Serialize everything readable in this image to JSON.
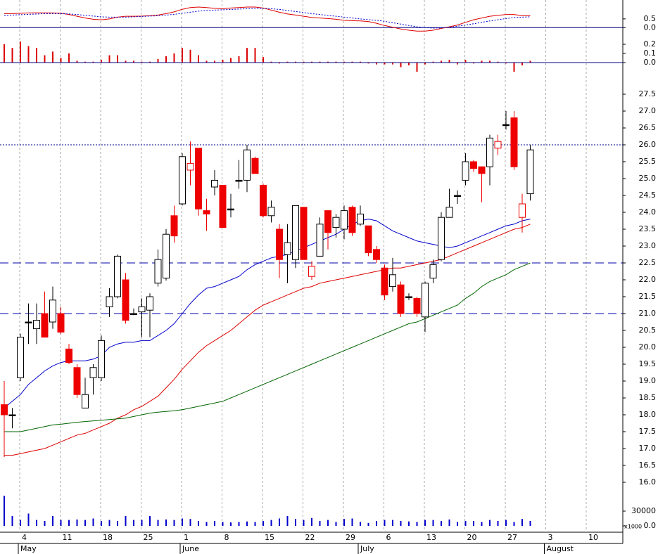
{
  "chart_data": [
    {
      "type": "line",
      "ylim": [
        -0.35,
        1.5
      ],
      "yticks": [
        {
          "value": 0,
          "label": "0.0"
        },
        0.5
      ],
      "zero_line": true,
      "series": [
        {
          "color": "#dd0000",
          "style": "solid",
          "values": [
            0.8,
            0.8,
            0.82,
            0.84,
            0.85,
            0.85,
            0.84,
            0.82,
            0.75,
            0.65,
            0.55,
            0.48,
            0.45,
            0.5,
            0.6,
            0.65,
            0.65,
            0.66,
            0.68,
            0.72,
            0.8,
            0.9,
            1.05,
            1.15,
            1.18,
            1.15,
            1.1,
            1.08,
            1.12,
            1.15,
            1.18,
            1.18,
            1.12,
            1.0,
            0.88,
            0.78,
            0.72,
            0.65,
            0.58,
            0.55,
            0.52,
            0.48,
            0.42,
            0.4,
            0.38,
            0.35,
            0.25,
            0.12,
            0.02,
            -0.08,
            -0.15,
            -0.2,
            -0.2,
            -0.15,
            -0.05,
            0.05,
            0.15,
            0.3,
            0.45,
            0.55,
            0.65,
            0.7,
            0.75,
            0.75,
            0.68,
            0.68,
            null,
            null,
            null,
            null,
            null,
            null,
            null,
            null,
            null,
            null,
            null
          ]
        },
        {
          "color": "#0000cc",
          "style": "dotted",
          "values": [
            0.7,
            0.72,
            0.74,
            0.76,
            0.78,
            0.8,
            0.8,
            0.8,
            0.78,
            0.75,
            0.7,
            0.66,
            0.62,
            0.6,
            0.6,
            0.6,
            0.62,
            0.64,
            0.66,
            0.68,
            0.72,
            0.76,
            0.82,
            0.88,
            0.94,
            0.98,
            1.0,
            1.02,
            1.04,
            1.06,
            1.08,
            1.1,
            1.1,
            1.08,
            1.04,
            0.98,
            0.92,
            0.86,
            0.8,
            0.75,
            0.7,
            0.65,
            0.6,
            0.55,
            0.5,
            0.46,
            0.42,
            0.36,
            0.28,
            0.2,
            0.12,
            0.05,
            0,
            -0.03,
            -0.02,
            0.02,
            0.08,
            0.15,
            0.22,
            0.3,
            0.38,
            0.45,
            0.52,
            0.58,
            0.6,
            0.62,
            null,
            null,
            null,
            null,
            null,
            null,
            null,
            null,
            null,
            null,
            null
          ]
        }
      ]
    },
    {
      "type": "bar",
      "color": "#dd0000",
      "ylim": [
        -0.1,
        0.3
      ],
      "yticks": [
        {
          "value": 0,
          "label": "0.0"
        },
        0.1,
        0.2
      ],
      "zero_line": true,
      "values": [
        0.2,
        0.16,
        0.23,
        0.18,
        0.16,
        0.08,
        0.12,
        0.05,
        0.1,
        0.02,
        0.01,
        0.01,
        0.03,
        0.08,
        0.08,
        0.02,
        0.02,
        0.01,
        0.01,
        0.04,
        0.07,
        0.1,
        0.16,
        0.14,
        0.08,
        0.02,
        0.02,
        0.03,
        0.05,
        0.07,
        0.16,
        0.16,
        0.06,
        0.01,
        -0.01,
        0.01,
        0.01,
        0.01,
        0.01,
        0.01,
        0.01,
        0.01,
        0.01,
        0.01,
        0.01,
        -0.01,
        -0.02,
        -0.02,
        -0.02,
        -0.05,
        -0.03,
        -0.1,
        -0.02,
        0.01,
        0.02,
        0.03,
        -0.02,
        0.03,
        -0.01,
        0.02,
        0.02,
        0.01,
        -0.01,
        -0.1,
        -0.03,
        0.02,
        null,
        null,
        null,
        null,
        null,
        null,
        null,
        null,
        null,
        null,
        null
      ]
    },
    {
      "type": "candlestick",
      "categories": [
        null,
        null,
        "4",
        null,
        null,
        null,
        null,
        "11",
        null,
        null,
        null,
        null,
        "18",
        null,
        null,
        null,
        null,
        "25",
        null,
        null,
        null,
        null,
        "1",
        null,
        null,
        null,
        null,
        "8",
        null,
        null,
        null,
        null,
        "15",
        null,
        null,
        null,
        null,
        "22",
        null,
        null,
        null,
        null,
        "29",
        null,
        null,
        null,
        null,
        "6",
        null,
        null,
        null,
        null,
        "13",
        null,
        null,
        null,
        null,
        "20",
        null,
        null,
        null,
        null,
        "27",
        null,
        null,
        null,
        null,
        "3",
        null,
        null,
        null,
        null,
        "10",
        null,
        null,
        null,
        null
      ],
      "months": [
        null,
        null,
        "May",
        null,
        null,
        null,
        null,
        null,
        null,
        null,
        null,
        null,
        null,
        null,
        null,
        null,
        null,
        null,
        null,
        null,
        null,
        null,
        "June",
        null,
        null,
        null,
        null,
        null,
        null,
        null,
        null,
        null,
        null,
        null,
        null,
        null,
        null,
        null,
        null,
        null,
        null,
        null,
        null,
        null,
        "July",
        null,
        null,
        null,
        null,
        null,
        null,
        null,
        null,
        null,
        null,
        null,
        null,
        null,
        null,
        null,
        null,
        null,
        null,
        null,
        null,
        null,
        null,
        "August",
        null,
        null,
        null,
        null,
        null,
        null,
        null,
        null,
        null
      ],
      "open": [
        18.3,
        18.0,
        19.1,
        20.75,
        20.55,
        21.0,
        20.75,
        21.0,
        19.95,
        19.4,
        18.2,
        19.1,
        19.1,
        21.2,
        21.5,
        22.0,
        21.0,
        21.05,
        21.1,
        21.9,
        22.05,
        23.9,
        24.25,
        25.25,
        25.9,
        24.05,
        24.75,
        24.8,
        24.1,
        24.95,
        24.95,
        25.6,
        24.8,
        23.9,
        23.5,
        22.75,
        22.6,
        24.15,
        22.1,
        22.7,
        24.05,
        23.55,
        23.5,
        24.15,
        23.65,
        23.6,
        22.9,
        22.35,
        21.8,
        21.85,
        21.5,
        21.45,
        20.9,
        22.05,
        22.6,
        23.85,
        24.5,
        24.95,
        25.5,
        25.35,
        25.35,
        25.9,
        26.6,
        26.8,
        23.85,
        24.55,
        null,
        null,
        null,
        null,
        null,
        null,
        null,
        null,
        null,
        null,
        null
      ],
      "high": [
        19.0,
        18.2,
        20.4,
        21.3,
        21.3,
        21.65,
        21.8,
        21.2,
        20.1,
        19.5,
        19.1,
        19.5,
        20.35,
        21.75,
        22.75,
        22.2,
        21.15,
        21.45,
        21.6,
        22.9,
        23.5,
        24.2,
        25.75,
        26.1,
        25.9,
        24.4,
        25.25,
        24.8,
        24.55,
        25.55,
        26.0,
        25.65,
        24.85,
        24.35,
        23.65,
        23.65,
        24.2,
        24.15,
        22.55,
        23.85,
        24.05,
        23.95,
        24.2,
        24.2,
        24.2,
        23.6,
        23.0,
        22.45,
        22.65,
        21.95,
        21.6,
        21.5,
        21.95,
        22.6,
        24.0,
        24.7,
        24.65,
        25.75,
        25.55,
        25.35,
        26.3,
        26.3,
        27.0,
        27.0,
        24.55,
        26.0,
        null,
        null,
        null,
        null,
        null,
        null,
        null,
        null,
        null,
        null,
        null
      ],
      "low": [
        16.75,
        17.6,
        19.0,
        20.1,
        20.1,
        20.3,
        20.55,
        20.4,
        19.5,
        18.5,
        18.2,
        18.6,
        19.0,
        20.9,
        21.45,
        20.7,
        20.95,
        20.3,
        20.3,
        21.8,
        21.98,
        23.1,
        24.2,
        24.8,
        23.9,
        23.45,
        24.5,
        23.55,
        23.85,
        24.7,
        24.6,
        25.15,
        23.85,
        23.7,
        22.05,
        21.9,
        22.35,
        22.6,
        22.0,
        22.7,
        22.9,
        23.25,
        23.2,
        23.3,
        23.6,
        22.7,
        22.5,
        21.4,
        21.65,
        20.9,
        21.4,
        20.9,
        20.45,
        21.9,
        22.55,
        23.85,
        24.25,
        24.8,
        25.2,
        24.3,
        24.8,
        25.7,
        26.45,
        25.25,
        23.4,
        24.35,
        null,
        null,
        null,
        null,
        null,
        null,
        null,
        null,
        null,
        null,
        null
      ],
      "close": [
        18.0,
        18.0,
        20.3,
        20.75,
        20.8,
        20.3,
        21.4,
        20.45,
        19.55,
        18.6,
        18.6,
        19.4,
        20.2,
        21.5,
        22.7,
        20.8,
        21.0,
        21.2,
        21.5,
        22.6,
        23.35,
        23.3,
        25.65,
        25.45,
        24.1,
        23.95,
        24.95,
        23.55,
        24.1,
        24.95,
        25.85,
        25.15,
        23.9,
        24.15,
        22.6,
        23.1,
        24.2,
        22.6,
        22.4,
        23.65,
        23.4,
        23.85,
        24.05,
        23.4,
        23.95,
        22.8,
        22.6,
        21.55,
        22.15,
        21.0,
        21.5,
        21.0,
        21.9,
        22.45,
        23.85,
        24.15,
        24.5,
        25.5,
        25.3,
        25.15,
        26.2,
        26.1,
        26.6,
        25.35,
        24.25,
        25.85,
        null,
        null,
        null,
        null,
        null,
        null,
        null,
        null,
        null,
        null,
        null
      ],
      "up_color": "#000000",
      "down_color": "#ee0000",
      "series": [
        {
          "color": "#0000cc",
          "values": [
            18.2,
            18.4,
            18.6,
            18.9,
            19.1,
            19.3,
            19.45,
            19.55,
            19.6,
            19.6,
            19.6,
            19.65,
            19.75,
            20.0,
            20.1,
            20.15,
            20.15,
            20.2,
            20.2,
            20.35,
            20.5,
            20.7,
            21.0,
            21.3,
            21.55,
            21.75,
            21.8,
            21.9,
            22.0,
            22.1,
            22.3,
            22.45,
            22.55,
            22.65,
            22.7,
            22.75,
            22.85,
            22.95,
            23.05,
            23.15,
            23.25,
            23.35,
            23.5,
            23.65,
            23.75,
            23.8,
            23.75,
            23.6,
            23.45,
            23.35,
            23.25,
            23.15,
            23.1,
            23.05,
            23.0,
            22.95,
            23.0,
            23.1,
            23.2,
            23.3,
            23.4,
            23.5,
            23.6,
            23.65,
            23.75,
            23.8,
            null,
            null,
            null,
            null,
            null,
            null,
            null,
            null,
            null,
            null,
            null
          ]
        },
        {
          "color": "#dd0000",
          "values": [
            16.8,
            16.8,
            16.85,
            16.9,
            16.95,
            17.0,
            17.1,
            17.2,
            17.3,
            17.4,
            17.45,
            17.55,
            17.65,
            17.75,
            17.9,
            18.0,
            18.15,
            18.25,
            18.4,
            18.55,
            18.8,
            19.05,
            19.35,
            19.6,
            19.85,
            20.05,
            20.2,
            20.35,
            20.5,
            20.7,
            20.9,
            21.1,
            21.25,
            21.35,
            21.45,
            21.55,
            21.65,
            21.75,
            21.8,
            21.9,
            21.95,
            22.0,
            22.05,
            22.1,
            22.15,
            22.2,
            22.25,
            22.3,
            22.35,
            22.35,
            22.4,
            22.45,
            22.5,
            22.55,
            22.6,
            22.7,
            22.8,
            22.9,
            23.0,
            23.1,
            23.2,
            23.3,
            23.4,
            23.5,
            23.55,
            23.65,
            null,
            null,
            null,
            null,
            null,
            null,
            null,
            null,
            null,
            null,
            null
          ]
        },
        {
          "color": "#006600",
          "values": [
            17.5,
            17.5,
            17.5,
            17.55,
            17.6,
            17.65,
            17.7,
            17.72,
            17.75,
            17.78,
            17.8,
            17.82,
            17.84,
            17.86,
            17.88,
            17.9,
            17.95,
            18.0,
            18.05,
            18.08,
            18.1,
            18.12,
            18.15,
            18.2,
            18.25,
            18.3,
            18.35,
            18.4,
            18.5,
            18.6,
            18.7,
            18.8,
            18.9,
            19.0,
            19.1,
            19.2,
            19.3,
            19.4,
            19.5,
            19.6,
            19.7,
            19.8,
            19.9,
            20.0,
            20.1,
            20.2,
            20.3,
            20.4,
            20.5,
            20.6,
            20.7,
            20.75,
            20.85,
            20.95,
            21.05,
            21.15,
            21.25,
            21.45,
            21.6,
            21.8,
            21.95,
            22.05,
            22.15,
            22.3,
            22.4,
            22.5,
            null,
            null,
            null,
            null,
            null,
            null,
            null,
            null,
            null,
            null,
            null
          ]
        }
      ],
      "hlines": [
        {
          "value": 26.0,
          "style": "dotted",
          "color": "#000088"
        },
        {
          "value": 22.5,
          "style": "dashed",
          "color": "#0000aa"
        },
        {
          "value": 21.0,
          "style": "dashed",
          "color": "#0000aa"
        }
      ],
      "ylim": [
        15.75,
        28.25
      ],
      "yticks": [
        {
          "value": 16,
          "label": "16.0"
        },
        16.5,
        {
          "value": 17,
          "label": "17.0"
        },
        17.5,
        {
          "value": 18,
          "label": "18.0"
        },
        18.5,
        {
          "value": 19,
          "label": "19.0"
        },
        19.5,
        {
          "value": 20,
          "label": "20.0"
        },
        20.5,
        {
          "value": 21,
          "label": "21.0"
        },
        21.5,
        {
          "value": 22,
          "label": "22.0"
        },
        22.5,
        {
          "value": 23,
          "label": "23.0"
        },
        23.5,
        {
          "value": 24,
          "label": "24.0"
        },
        24.5,
        {
          "value": 25,
          "label": "25.0"
        },
        25.5,
        {
          "value": 26,
          "label": "26.0"
        },
        26.5,
        {
          "value": 27,
          "label": "27.0"
        },
        27.5
      ]
    },
    {
      "type": "bar",
      "color": "#0000cc",
      "unit": "x1000",
      "ylim": [
        0,
        60000
      ],
      "yticks": [
        {
          "value": 0,
          "label": "0.0"
        },
        30000
      ],
      "values": [
        61000,
        20000,
        12000,
        25000,
        12000,
        10000,
        20000,
        12000,
        12000,
        13000,
        12000,
        15000,
        10000,
        12000,
        10000,
        20000,
        12000,
        12000,
        20000,
        12000,
        13000,
        12000,
        15000,
        14000,
        10000,
        8000,
        10000,
        8000,
        7000,
        8000,
        9000,
        8000,
        10000,
        12000,
        15000,
        20000,
        14000,
        12000,
        16000,
        10000,
        12000,
        8000,
        14000,
        15000,
        8000,
        6000,
        10000,
        12000,
        12000,
        10000,
        9000,
        8000,
        12000,
        12000,
        10000,
        13000,
        8000,
        10000,
        10000,
        8000,
        12000,
        10000,
        12000,
        8000,
        14000,
        10000,
        null,
        null,
        null,
        null,
        null,
        null,
        null,
        null,
        null,
        null,
        null
      ]
    }
  ]
}
